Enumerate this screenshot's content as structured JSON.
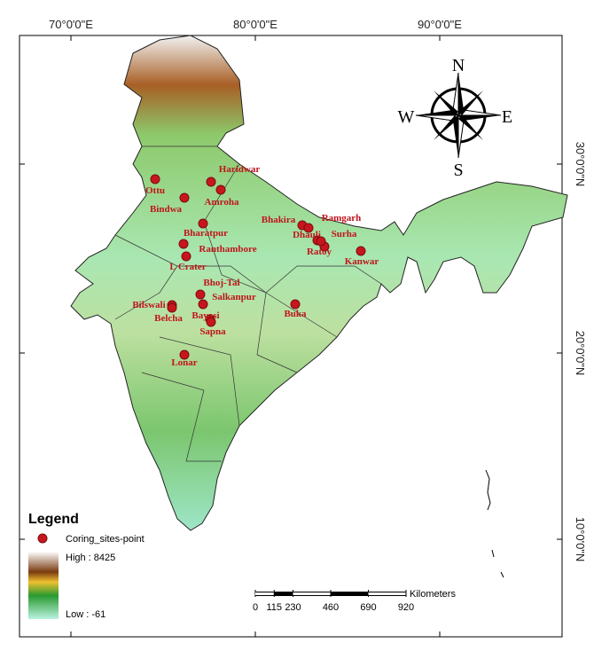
{
  "map": {
    "longitude_labels": [
      "70°0'0\"E",
      "80°0'0\"E",
      "90°0'0\"E"
    ],
    "latitude_labels": [
      "30°0'0\"N",
      "20°0'0\"N",
      "10°0'0\"N"
    ],
    "compass": {
      "north": "N",
      "south": "S",
      "east": "E",
      "west": "W"
    },
    "sites": [
      "Haridwar",
      "Ottu",
      "Bindwa",
      "Amroha",
      "Bhakira",
      "Ramgarh",
      "Dhauli",
      "Surha",
      "Ratoy",
      "Kanwar",
      "Bharatpur",
      "Ranthambore",
      "L Crater",
      "Bhoj-Tal",
      "Salkanpur",
      "Bilswali",
      "Belcha",
      "Bayasi",
      "Sapna",
      "Buka",
      "Lonar"
    ],
    "legend": {
      "title": "Legend",
      "point_label": "Coring_sites-point",
      "high_label": "High : 8425",
      "low_label": "Low : -61"
    },
    "scale_bar": {
      "ticks": [
        0,
        115,
        230,
        460,
        690,
        920
      ],
      "unit": "Kilometers"
    }
  }
}
